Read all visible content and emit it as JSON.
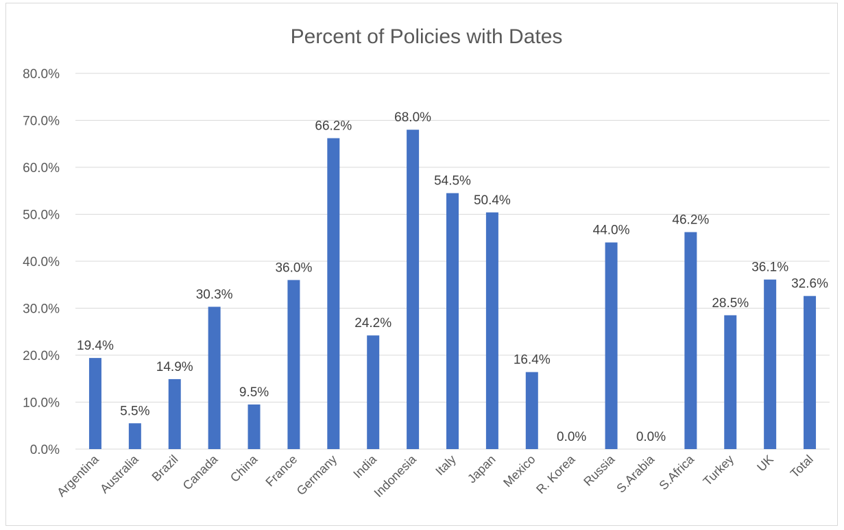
{
  "chart_data": {
    "type": "bar",
    "title": "Percent of Policies with Dates",
    "categories": [
      "Argentina",
      "Australia",
      "Brazil",
      "Canada",
      "China",
      "France",
      "Germany",
      "India",
      "Indonesia",
      "Italy",
      "Japan",
      "Mexico",
      "R. Korea",
      "Russia",
      "S.Arabia",
      "S.Africa",
      "Turkey",
      "UK",
      "Total"
    ],
    "values": [
      19.4,
      5.5,
      14.9,
      30.3,
      9.5,
      36.0,
      66.2,
      24.2,
      68.0,
      54.5,
      50.4,
      16.4,
      0.0,
      44.0,
      0.0,
      46.2,
      28.5,
      36.1,
      32.6
    ],
    "data_labels": [
      "19.4%",
      "5.5%",
      "14.9%",
      "30.3%",
      "9.5%",
      "36.0%",
      "66.2%",
      "24.2%",
      "68.0%",
      "54.5%",
      "50.4%",
      "16.4%",
      "0.0%",
      "44.0%",
      "0.0%",
      "46.2%",
      "28.5%",
      "36.1%",
      "32.6%"
    ],
    "y_ticks": [
      "0.0%",
      "10.0%",
      "20.0%",
      "30.0%",
      "40.0%",
      "50.0%",
      "60.0%",
      "70.0%",
      "80.0%"
    ],
    "ylim": [
      0,
      80
    ],
    "xlabel": "",
    "ylabel": "",
    "grid": true,
    "legend": "none",
    "bar_color": "#4472c4",
    "grid_color": "#d9d9d9"
  }
}
